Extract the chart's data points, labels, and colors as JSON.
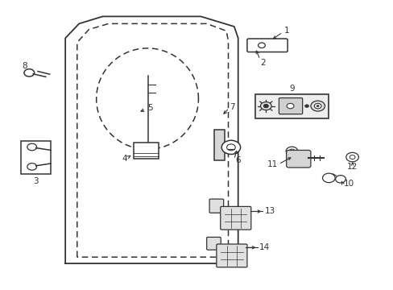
{
  "bg": "#ffffff",
  "line_color": "#333333"
}
